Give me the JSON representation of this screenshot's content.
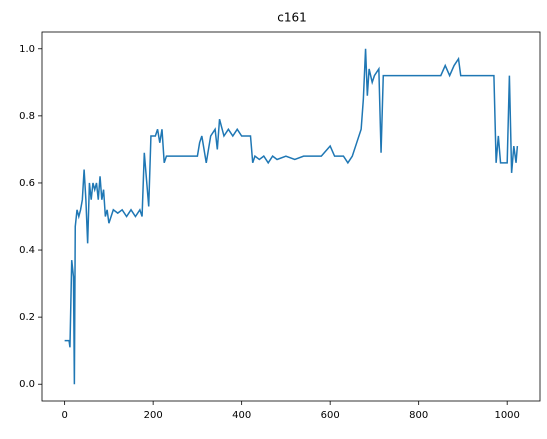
{
  "chart_data": {
    "type": "line",
    "title": "c161",
    "x": [
      0,
      10,
      12,
      16,
      20,
      22,
      24,
      28,
      32,
      36,
      40,
      44,
      48,
      52,
      56,
      60,
      64,
      68,
      72,
      76,
      80,
      84,
      88,
      92,
      96,
      100,
      110,
      120,
      130,
      140,
      150,
      160,
      170,
      175,
      180,
      190,
      195,
      205,
      210,
      215,
      220,
      225,
      230,
      240,
      300,
      305,
      310,
      320,
      330,
      340,
      345,
      350,
      360,
      370,
      380,
      390,
      400,
      410,
      420,
      425,
      430,
      440,
      450,
      460,
      470,
      480,
      500,
      520,
      540,
      560,
      580,
      600,
      610,
      630,
      640,
      650,
      660,
      670,
      675,
      680,
      684,
      688,
      695,
      700,
      710,
      715,
      720,
      850,
      860,
      870,
      880,
      890,
      895,
      900,
      960,
      970,
      975,
      980,
      985,
      1000,
      1005,
      1010,
      1015,
      1020,
      1023
    ],
    "series": [
      {
        "name": "c161",
        "color": "#1f77b4",
        "values": [
          0.13,
          0.13,
          0.11,
          0.37,
          0.32,
          0.0,
          0.47,
          0.52,
          0.5,
          0.52,
          0.55,
          0.64,
          0.55,
          0.42,
          0.6,
          0.55,
          0.6,
          0.58,
          0.6,
          0.55,
          0.62,
          0.55,
          0.58,
          0.5,
          0.52,
          0.48,
          0.52,
          0.51,
          0.52,
          0.5,
          0.52,
          0.5,
          0.52,
          0.5,
          0.69,
          0.53,
          0.74,
          0.74,
          0.76,
          0.72,
          0.76,
          0.66,
          0.68,
          0.68,
          0.68,
          0.72,
          0.74,
          0.66,
          0.74,
          0.76,
          0.7,
          0.79,
          0.74,
          0.76,
          0.74,
          0.76,
          0.74,
          0.74,
          0.74,
          0.66,
          0.68,
          0.67,
          0.68,
          0.66,
          0.68,
          0.67,
          0.68,
          0.67,
          0.68,
          0.68,
          0.68,
          0.71,
          0.68,
          0.68,
          0.66,
          0.68,
          0.72,
          0.76,
          0.85,
          1.0,
          0.86,
          0.94,
          0.9,
          0.92,
          0.94,
          0.69,
          0.92,
          0.92,
          0.95,
          0.92,
          0.95,
          0.97,
          0.92,
          0.92,
          0.92,
          0.92,
          0.66,
          0.74,
          0.66,
          0.66,
          0.92,
          0.63,
          0.71,
          0.66,
          0.71
        ]
      }
    ],
    "xlim": [
      -51.15,
      1074.15
    ],
    "xticks": [
      0,
      200,
      400,
      600,
      800,
      1000
    ],
    "ylim": [
      -0.05,
      1.05
    ],
    "yticks": [
      {
        "value": 0,
        "label": "0.0"
      },
      {
        "value": 0.2,
        "label": "0.2"
      },
      {
        "value": 0.4,
        "label": "0.4"
      },
      {
        "value": 0.6,
        "label": "0.6"
      },
      {
        "value": 0.8,
        "label": "0.8"
      },
      {
        "value": 1.0,
        "label": "1.0"
      }
    ],
    "grid": false
  }
}
